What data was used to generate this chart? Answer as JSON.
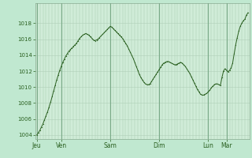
{
  "background_color": "#c0e8d0",
  "plot_bg_color": "#d0ecd8",
  "line_color": "#2a6020",
  "marker_color": "#2a6020",
  "grid_color_v": "#a0c8a8",
  "grid_color_h": "#b0d0b8",
  "tick_label_color": "#2a6020",
  "ylim": [
    1003.5,
    1020.5
  ],
  "yticks": [
    1004,
    1006,
    1008,
    1010,
    1012,
    1014,
    1016,
    1018
  ],
  "day_labels": [
    "Jeu",
    "Ven",
    "Sam",
    "Dim",
    "Lun",
    "Mar"
  ],
  "day_tick_positions": [
    0,
    16,
    48,
    80,
    112,
    124
  ],
  "n_points": 137,
  "pressure_data": [
    1004.0,
    1004.3,
    1004.6,
    1005.0,
    1005.4,
    1005.9,
    1006.4,
    1006.9,
    1007.5,
    1008.1,
    1008.8,
    1009.5,
    1010.2,
    1010.9,
    1011.5,
    1012.1,
    1012.6,
    1013.1,
    1013.5,
    1013.9,
    1014.2,
    1014.5,
    1014.7,
    1014.9,
    1015.1,
    1015.3,
    1015.5,
    1015.8,
    1016.1,
    1016.3,
    1016.5,
    1016.6,
    1016.7,
    1016.6,
    1016.5,
    1016.3,
    1016.1,
    1015.9,
    1015.8,
    1015.9,
    1016.0,
    1016.2,
    1016.4,
    1016.6,
    1016.8,
    1017.0,
    1017.2,
    1017.4,
    1017.6,
    1017.5,
    1017.3,
    1017.1,
    1016.9,
    1016.7,
    1016.5,
    1016.3,
    1016.1,
    1015.8,
    1015.5,
    1015.2,
    1014.8,
    1014.4,
    1014.0,
    1013.6,
    1013.1,
    1012.6,
    1012.1,
    1011.6,
    1011.2,
    1010.9,
    1010.6,
    1010.4,
    1010.3,
    1010.3,
    1010.4,
    1010.7,
    1011.0,
    1011.3,
    1011.6,
    1011.9,
    1012.2,
    1012.5,
    1012.8,
    1013.0,
    1013.1,
    1013.2,
    1013.2,
    1013.1,
    1013.0,
    1012.9,
    1012.8,
    1012.8,
    1012.9,
    1013.0,
    1013.1,
    1013.0,
    1012.8,
    1012.6,
    1012.3,
    1012.0,
    1011.7,
    1011.3,
    1010.9,
    1010.5,
    1010.1,
    1009.7,
    1009.4,
    1009.1,
    1009.0,
    1009.0,
    1009.1,
    1009.2,
    1009.4,
    1009.6,
    1009.9,
    1010.1,
    1010.3,
    1010.4,
    1010.4,
    1010.3,
    1010.2,
    1011.2,
    1012.0,
    1012.3,
    1012.1,
    1011.9,
    1012.1,
    1012.4,
    1013.0,
    1014.2,
    1015.3,
    1016.2,
    1017.0,
    1017.6,
    1018.0,
    1018.3,
    1018.5,
    1019.0,
    1019.3
  ]
}
